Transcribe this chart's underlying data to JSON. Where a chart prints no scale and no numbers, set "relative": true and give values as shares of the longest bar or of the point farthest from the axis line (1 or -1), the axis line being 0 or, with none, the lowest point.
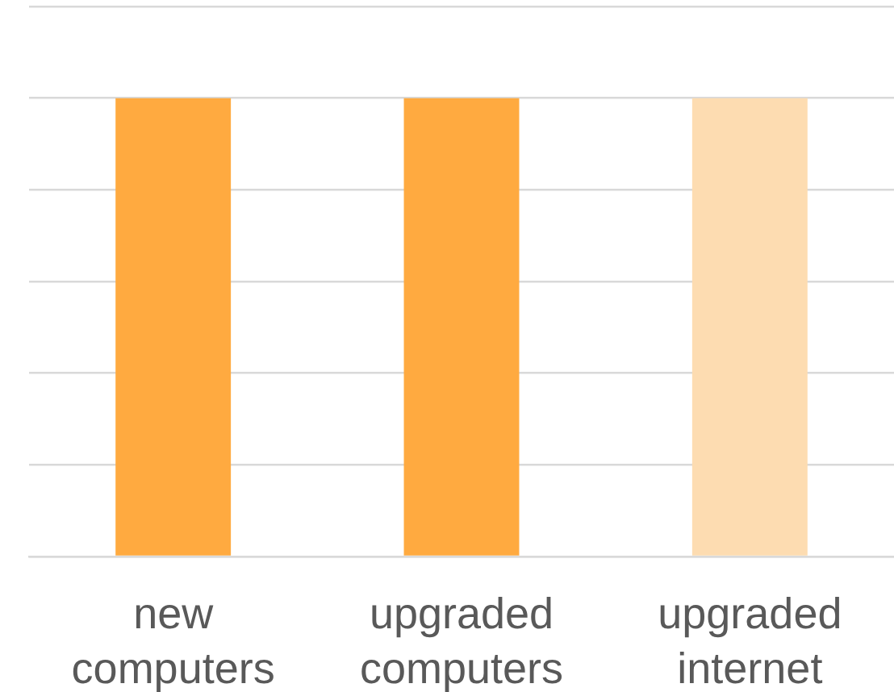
{
  "chart_data": {
    "type": "bar",
    "categories": [
      "new computers",
      "upgraded computers",
      "upgraded internet"
    ],
    "values": [
      1,
      1,
      1
    ],
    "colors": [
      "#ffaa40",
      "#ffaa40",
      "#fddcb1"
    ],
    "relative": true,
    "grid": "y"
  }
}
